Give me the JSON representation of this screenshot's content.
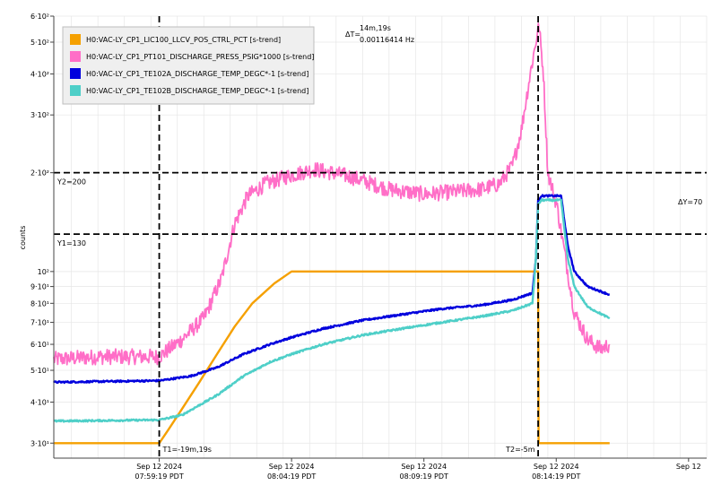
{
  "chart_data": {
    "type": "line",
    "title": "",
    "xlabel": "",
    "ylabel": "counts",
    "y_scale": "log",
    "ylim": [
      27,
      600
    ],
    "xlim": [
      "2024-09-12T07:55:20",
      "2024-09-12T08:20:00"
    ],
    "grid": true,
    "legend_position": "top-left",
    "y_ticks": [
      {
        "value": 30,
        "label": "3·10¹"
      },
      {
        "value": 40,
        "label": "4·10¹"
      },
      {
        "value": 50,
        "label": "5·10¹"
      },
      {
        "value": 60,
        "label": "6·10¹"
      },
      {
        "value": 70,
        "label": "7·10¹"
      },
      {
        "value": 80,
        "label": "8·10¹"
      },
      {
        "value": 90,
        "label": "9·10¹"
      },
      {
        "value": 100,
        "label": "10²"
      },
      {
        "value": 200,
        "label": "2·10²"
      },
      {
        "value": 300,
        "label": "3·10²"
      },
      {
        "value": 400,
        "label": "4·10²"
      },
      {
        "value": 500,
        "label": "5·10²"
      },
      {
        "value": 600,
        "label": "6·10²"
      }
    ],
    "x_ticks": [
      {
        "value": "2024-09-12T07:59:19",
        "line1": "Sep 12 2024",
        "line2": "07:59:19 PDT"
      },
      {
        "value": "2024-09-12T08:04:19",
        "line1": "Sep 12 2024",
        "line2": "08:04:19 PDT"
      },
      {
        "value": "2024-09-12T08:09:19",
        "line1": "Sep 12 2024",
        "line2": "08:09:19 PDT"
      },
      {
        "value": "2024-09-12T08:14:19",
        "line1": "Sep 12 2024",
        "line2": "08:14:19 PDT"
      },
      {
        "value": "2024-09-12T08:19:19",
        "line1": "Sep 12",
        "line2": ""
      }
    ],
    "cursors": {
      "t1": {
        "x": "2024-09-12T07:59:19",
        "label": "T1=-19m,19s"
      },
      "t2": {
        "x": "2024-09-12T08:13:38",
        "label": "T2=-5m"
      },
      "y1": {
        "y": 130,
        "label": "Y1=130"
      },
      "y2": {
        "y": 200,
        "label": "Y2=200"
      },
      "delta_t_prefix": "ΔT=",
      "delta_t_value": "14m,19s",
      "delta_t_freq": "0.00116414 Hz",
      "delta_y": "ΔY=70"
    },
    "series": [
      {
        "name": "H0:VAC-LY_CP1_LIC100_LLCV_POS_CTRL_PCT [s-trend]",
        "color": "#f5a000",
        "noise": 0,
        "points": [
          [
            "2024-09-12T07:55:20",
            30
          ],
          [
            "2024-09-12T07:59:19",
            30
          ],
          [
            "2024-09-12T07:59:40",
            33
          ],
          [
            "2024-09-12T08:00:10",
            38
          ],
          [
            "2024-09-12T08:00:50",
            46
          ],
          [
            "2024-09-12T08:01:30",
            56
          ],
          [
            "2024-09-12T08:02:10",
            68
          ],
          [
            "2024-09-12T08:02:50",
            80
          ],
          [
            "2024-09-12T08:03:40",
            92
          ],
          [
            "2024-09-12T08:04:19",
            100
          ],
          [
            "2024-09-12T08:13:38",
            100
          ],
          [
            "2024-09-12T08:13:39",
            30
          ],
          [
            "2024-09-12T08:16:20",
            30
          ]
        ]
      },
      {
        "name": "H0:VAC-LY_CP1_PT101_DISCHARGE_PRESS_PSIG*1000 [s-trend]",
        "color": "#ff6ec7",
        "noise": 0.055,
        "points": [
          [
            "2024-09-12T07:55:20",
            54
          ],
          [
            "2024-09-12T07:57:00",
            55
          ],
          [
            "2024-09-12T07:59:19",
            55
          ],
          [
            "2024-09-12T08:00:10",
            62
          ],
          [
            "2024-09-12T08:01:00",
            72
          ],
          [
            "2024-09-12T08:01:40",
            95
          ],
          [
            "2024-09-12T08:02:10",
            140
          ],
          [
            "2024-09-12T08:02:40",
            170
          ],
          [
            "2024-09-12T08:03:20",
            185
          ],
          [
            "2024-09-12T08:04:10",
            195
          ],
          [
            "2024-09-12T08:05:10",
            205
          ],
          [
            "2024-09-12T08:06:30",
            195
          ],
          [
            "2024-09-12T08:08:00",
            178
          ],
          [
            "2024-09-12T08:09:19",
            172
          ],
          [
            "2024-09-12T08:10:30",
            175
          ],
          [
            "2024-09-12T08:11:30",
            178
          ],
          [
            "2024-09-12T08:12:10",
            185
          ],
          [
            "2024-09-12T08:12:40",
            210
          ],
          [
            "2024-09-12T08:13:00",
            270
          ],
          [
            "2024-09-12T08:13:20",
            400
          ],
          [
            "2024-09-12T08:13:35",
            520
          ],
          [
            "2024-09-12T08:13:40",
            560
          ],
          [
            "2024-09-12T08:13:50",
            400
          ],
          [
            "2024-09-12T08:14:00",
            200
          ],
          [
            "2024-09-12T08:14:20",
            160
          ],
          [
            "2024-09-12T08:14:40",
            110
          ],
          [
            "2024-09-12T08:15:00",
            75
          ],
          [
            "2024-09-12T08:15:30",
            62
          ],
          [
            "2024-09-12T08:16:00",
            58
          ],
          [
            "2024-09-12T08:16:20",
            60
          ]
        ]
      },
      {
        "name": "H0:VAC-LY_CP1_TE102A_DISCHARGE_TEMP_DEGC*-1 [s-trend]",
        "color": "#0000dd",
        "noise": 0.006,
        "points": [
          [
            "2024-09-12T07:55:20",
            46
          ],
          [
            "2024-09-12T07:59:19",
            46.5
          ],
          [
            "2024-09-12T08:00:30",
            48
          ],
          [
            "2024-09-12T08:01:30",
            51
          ],
          [
            "2024-09-12T08:02:30",
            56
          ],
          [
            "2024-09-12T08:03:30",
            60
          ],
          [
            "2024-09-12T08:04:19",
            63
          ],
          [
            "2024-09-12T08:05:30",
            67
          ],
          [
            "2024-09-12T08:07:00",
            71
          ],
          [
            "2024-09-12T08:08:30",
            74
          ],
          [
            "2024-09-12T08:10:00",
            77
          ],
          [
            "2024-09-12T08:11:30",
            79
          ],
          [
            "2024-09-12T08:12:40",
            82
          ],
          [
            "2024-09-12T08:13:25",
            86
          ],
          [
            "2024-09-12T08:13:33",
            110
          ],
          [
            "2024-09-12T08:13:38",
            165
          ],
          [
            "2024-09-12T08:13:45",
            170
          ],
          [
            "2024-09-12T08:14:30",
            170
          ],
          [
            "2024-09-12T08:14:45",
            120
          ],
          [
            "2024-09-12T08:15:00",
            100
          ],
          [
            "2024-09-12T08:15:30",
            90
          ],
          [
            "2024-09-12T08:16:20",
            85
          ]
        ]
      },
      {
        "name": "H0:VAC-LY_CP1_TE102B_DISCHARGE_TEMP_DEGC*-1 [s-trend]",
        "color": "#4ecfc8",
        "noise": 0.006,
        "points": [
          [
            "2024-09-12T07:55:20",
            35
          ],
          [
            "2024-09-12T07:59:19",
            35.3
          ],
          [
            "2024-09-12T08:00:10",
            36.5
          ],
          [
            "2024-09-12T08:01:30",
            42
          ],
          [
            "2024-09-12T08:02:30",
            48
          ],
          [
            "2024-09-12T08:03:30",
            53
          ],
          [
            "2024-09-12T08:04:19",
            56
          ],
          [
            "2024-09-12T08:05:30",
            60
          ],
          [
            "2024-09-12T08:07:00",
            64
          ],
          [
            "2024-09-12T08:08:30",
            67
          ],
          [
            "2024-09-12T08:10:00",
            70
          ],
          [
            "2024-09-12T08:11:30",
            73
          ],
          [
            "2024-09-12T08:12:40",
            76
          ],
          [
            "2024-09-12T08:13:25",
            80
          ],
          [
            "2024-09-12T08:13:33",
            110
          ],
          [
            "2024-09-12T08:13:38",
            160
          ],
          [
            "2024-09-12T08:13:45",
            165
          ],
          [
            "2024-09-12T08:14:30",
            165
          ],
          [
            "2024-09-12T08:14:45",
            110
          ],
          [
            "2024-09-12T08:15:00",
            90
          ],
          [
            "2024-09-12T08:15:30",
            78
          ],
          [
            "2024-09-12T08:16:20",
            72
          ]
        ]
      }
    ]
  }
}
